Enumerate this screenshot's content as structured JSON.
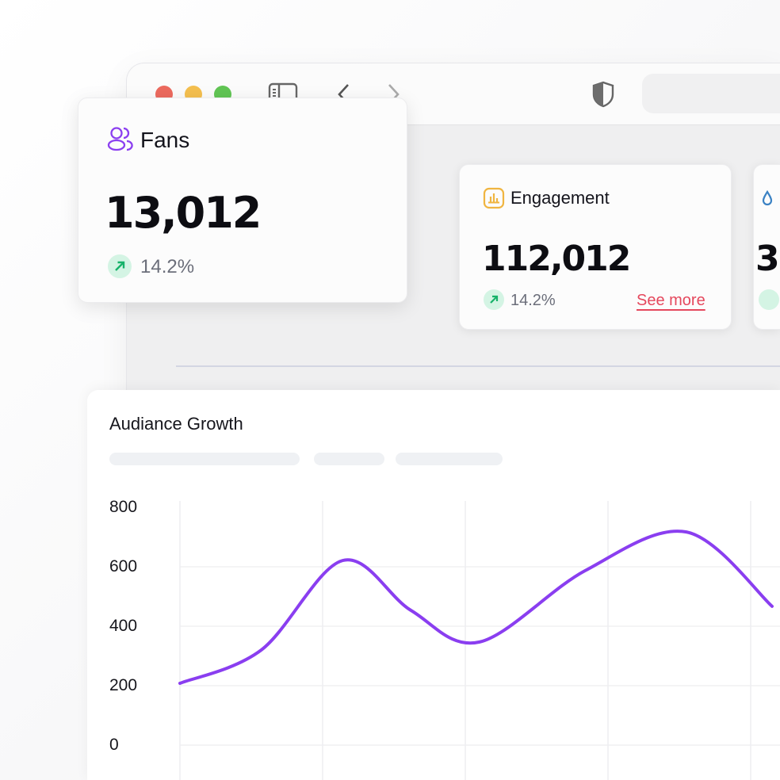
{
  "browser": {
    "traffic_lights": [
      "#ec6a5e",
      "#f4bf4f",
      "#61c554"
    ],
    "icons": [
      "sidebar-icon",
      "back-chevron-icon",
      "forward-chevron-icon",
      "shield-icon"
    ]
  },
  "cards": [
    {
      "title": "Fans",
      "icon": "users-icon",
      "icon_color": "#8b3ff0",
      "value": "13,012",
      "change": "14.2%",
      "trend": "up"
    },
    {
      "title": "Engagement",
      "icon": "bar-chart-icon",
      "icon_color": "#f0b541",
      "value": "112,012",
      "change": "14.2%",
      "trend": "up",
      "link": "See more",
      "link_color": "#e5485d"
    },
    {
      "title": "",
      "icon": "drop-icon",
      "icon_color": "#3b82c4",
      "value": "3",
      "change": "",
      "trend": "up"
    }
  ],
  "chart_data": {
    "type": "line",
    "title": "Audiance Growth",
    "xlabel": "",
    "ylabel": "",
    "yticks": [
      "800",
      "600",
      "400",
      "200",
      "0"
    ],
    "ylim": [
      0,
      800
    ],
    "grid": true,
    "color": "#8a3ef0",
    "x": [
      0,
      0.57,
      1.14,
      1.62,
      2.1,
      2.84,
      3.55,
      4.15
    ],
    "values": [
      208,
      320,
      621,
      453,
      347,
      587,
      717,
      467
    ]
  }
}
